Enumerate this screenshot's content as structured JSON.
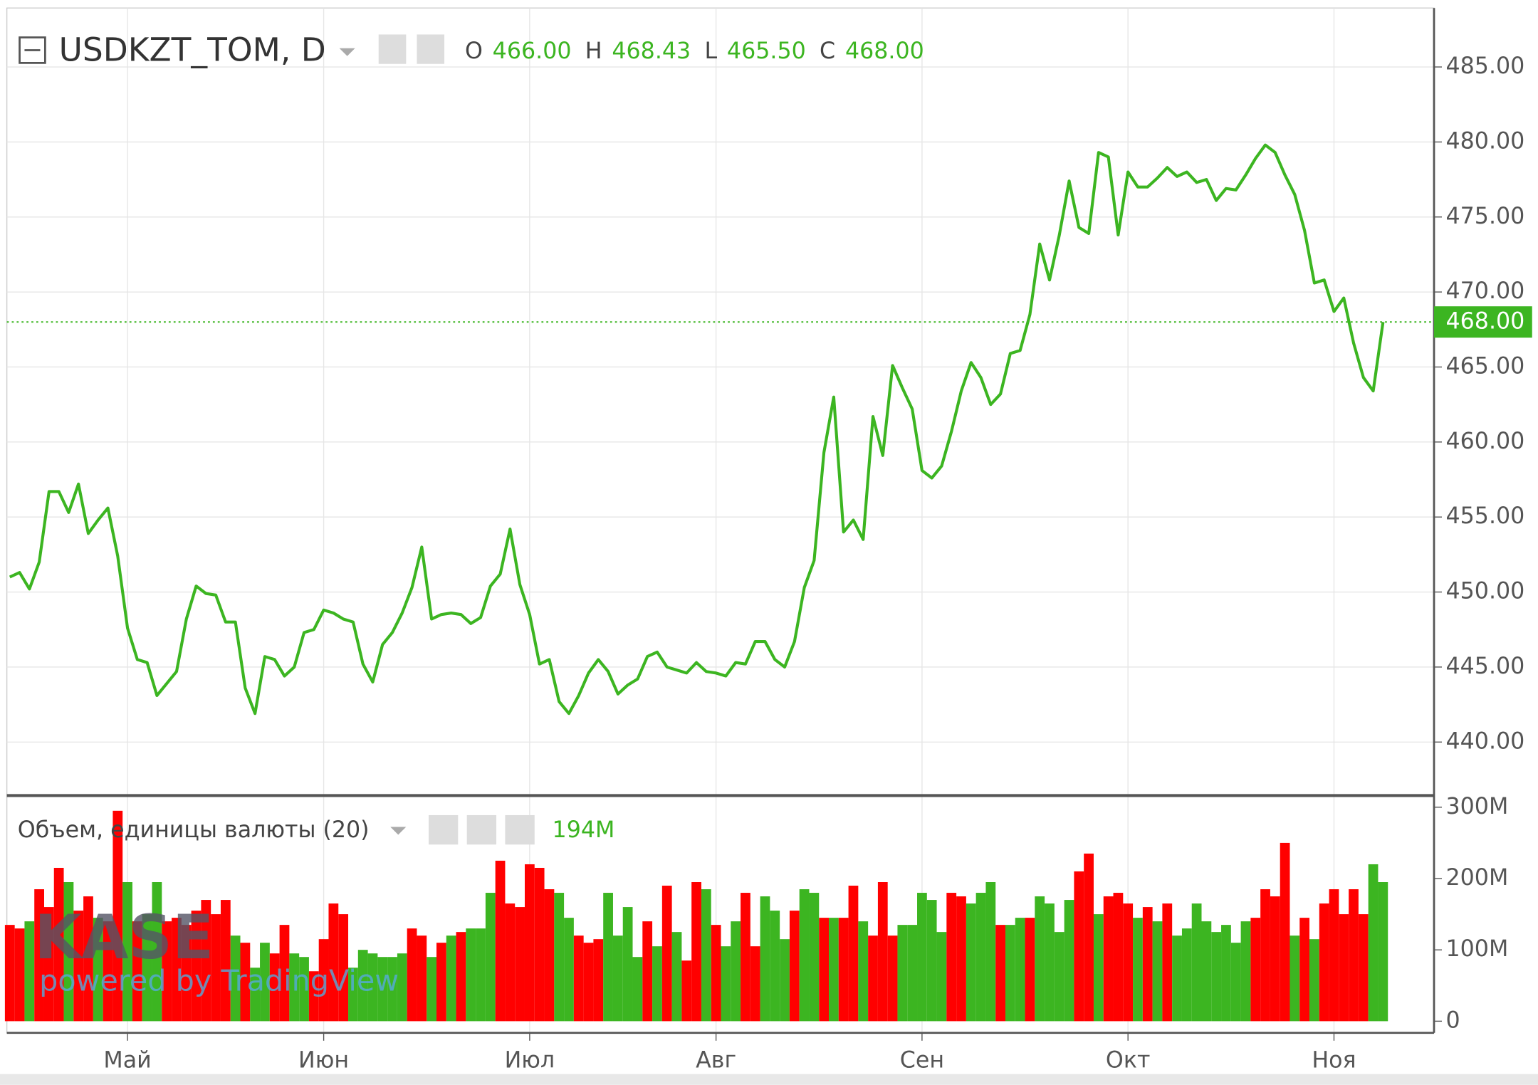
{
  "chart_data": [
    {
      "type": "line",
      "title": "USDKZT_TOM, D",
      "ohlc": [
        {
          "key": "O",
          "value": "466.00"
        },
        {
          "key": "H",
          "value": "468.43"
        },
        {
          "key": "L",
          "value": "465.50"
        },
        {
          "key": "C",
          "value": "468.00"
        }
      ],
      "last_value_label": "468.00",
      "categories": [
        null,
        null,
        null,
        null,
        null,
        null,
        null,
        null,
        null,
        null,
        null,
        null,
        "Май",
        null,
        null,
        null,
        null,
        null,
        null,
        null,
        null,
        null,
        null,
        null,
        null,
        null,
        null,
        null,
        null,
        null,
        null,
        null,
        "Июн",
        null,
        null,
        null,
        null,
        null,
        null,
        null,
        null,
        null,
        null,
        null,
        null,
        null,
        null,
        null,
        null,
        null,
        null,
        null,
        null,
        "Июл",
        null,
        null,
        null,
        null,
        null,
        null,
        null,
        null,
        null,
        null,
        null,
        null,
        null,
        null,
        null,
        null,
        null,
        null,
        "Авг",
        null,
        null,
        null,
        null,
        null,
        null,
        null,
        null,
        null,
        null,
        null,
        null,
        null,
        null,
        null,
        null,
        null,
        null,
        null,
        null,
        "Сен",
        null,
        null,
        null,
        null,
        null,
        null,
        null,
        null,
        null,
        null,
        null,
        null,
        null,
        null,
        null,
        null,
        null,
        null,
        null,
        null,
        "Окт",
        null,
        null,
        null,
        null,
        null,
        null,
        null,
        null,
        null,
        null,
        null,
        null,
        null,
        null,
        null,
        null,
        null,
        null,
        null,
        null,
        "Ноя",
        null,
        null,
        null,
        null,
        null
      ],
      "series": [
        {
          "color": "#3cb521",
          "values": [
            451.0,
            451.3,
            450.2,
            452.0,
            456.7,
            456.7,
            455.3,
            457.2,
            453.9,
            454.8,
            455.6,
            452.4,
            447.6,
            445.5,
            445.3,
            443.1,
            443.9,
            444.7,
            448.2,
            450.4,
            449.9,
            449.8,
            448.0,
            448.0,
            443.6,
            441.9,
            445.7,
            445.5,
            444.4,
            445.0,
            447.3,
            447.5,
            448.8,
            448.6,
            448.2,
            448.0,
            445.2,
            444.0,
            446.5,
            447.3,
            448.6,
            450.3,
            453.0,
            448.2,
            448.5,
            448.6,
            448.5,
            447.9,
            448.3,
            450.4,
            451.2,
            454.2,
            450.5,
            448.5,
            445.2,
            445.5,
            442.7,
            441.9,
            443.1,
            444.6,
            445.5,
            444.7,
            443.2,
            443.8,
            444.2,
            445.7,
            446.0,
            445.0,
            444.8,
            444.6,
            445.3,
            444.7,
            444.6,
            444.4,
            445.3,
            445.2,
            446.7,
            446.7,
            445.5,
            445.0,
            446.7,
            450.3,
            452.1,
            459.3,
            463.0,
            454.0,
            454.8,
            453.5,
            461.7,
            459.1,
            465.1,
            463.6,
            462.2,
            458.1,
            457.6,
            458.4,
            460.7,
            463.4,
            465.3,
            464.3,
            462.5,
            463.2,
            465.9,
            466.1,
            468.5,
            473.2,
            470.8,
            473.8,
            477.4,
            474.3,
            473.9,
            479.3,
            479.0,
            473.8,
            478.0,
            477.0,
            477.0,
            477.6,
            478.3,
            477.7,
            478.0,
            477.3,
            477.5,
            476.1,
            476.9,
            476.8,
            477.8,
            478.9,
            479.8,
            479.3,
            477.8,
            476.5,
            474.1,
            470.6,
            470.8,
            468.7,
            469.6,
            466.6,
            464.3,
            463.4,
            468.0
          ]
        }
      ],
      "ylim": [
        436.5,
        488.8
      ],
      "yticks": [
        {
          "value": 440,
          "label": "440.00"
        },
        {
          "value": 445,
          "label": "445.00"
        },
        {
          "value": 450,
          "label": "450.00"
        },
        {
          "value": 455,
          "label": "455.00"
        },
        {
          "value": 460,
          "label": "460.00"
        },
        {
          "value": 465,
          "label": "465.00"
        },
        {
          "value": 470,
          "label": "470.00"
        },
        {
          "value": 475,
          "label": "475.00"
        },
        {
          "value": 480,
          "label": "480.00"
        },
        {
          "value": 485,
          "label": "485.00"
        }
      ],
      "grid": true,
      "watermark": "KASE",
      "watermark_sub": "powered by TradingView"
    },
    {
      "type": "bar",
      "title": "Объем, единицы валюты (20)",
      "last_value_label": "194M",
      "values": [
        135,
        130,
        140,
        185,
        160,
        215,
        195,
        155,
        175,
        145,
        140,
        295,
        195,
        140,
        150,
        195,
        140,
        145,
        135,
        155,
        170,
        150,
        170,
        120,
        110,
        75,
        110,
        95,
        135,
        95,
        90,
        70,
        115,
        165,
        150,
        75,
        100,
        95,
        90,
        90,
        95,
        130,
        120,
        90,
        110,
        120,
        125,
        130,
        130,
        180,
        225,
        165,
        160,
        220,
        215,
        185,
        180,
        145,
        120,
        110,
        115,
        180,
        120,
        160,
        90,
        140,
        105,
        190,
        125,
        85,
        195,
        185,
        135,
        105,
        140,
        180,
        105,
        175,
        155,
        115,
        155,
        185,
        180,
        145,
        145,
        145,
        190,
        140,
        120,
        195,
        120,
        135,
        135,
        180,
        170,
        125,
        180,
        175,
        165,
        180,
        195,
        135,
        135,
        145,
        145,
        175,
        165,
        125,
        170,
        210,
        235,
        150,
        175,
        180,
        165,
        145,
        160,
        140,
        165,
        120,
        130,
        165,
        140,
        125,
        135,
        110,
        140,
        145,
        185,
        175,
        250,
        120,
        145,
        115,
        165,
        185,
        150,
        185,
        150,
        220,
        195
      ],
      "bar_colors": [
        "#f00",
        "#f00",
        "#3cb521",
        "#f00",
        "#f00",
        "#f00",
        "#3cb521",
        "#f00",
        "#f00",
        "#3cb521",
        "#f00",
        "#f00",
        "#3cb521",
        "#f00",
        "#3cb521",
        "#3cb521",
        "#f00",
        "#f00",
        "#f00",
        "#f00",
        "#f00",
        "#f00",
        "#f00",
        "#3cb521",
        "#f00",
        "#3cb521",
        "#3cb521",
        "#f00",
        "#f00",
        "#3cb521",
        "#3cb521",
        "#f00",
        "#f00",
        "#f00",
        "#f00",
        "#3cb521",
        "#3cb521",
        "#3cb521",
        "#3cb521",
        "#3cb521",
        "#3cb521",
        "#f00",
        "#f00",
        "#3cb521",
        "#f00",
        "#3cb521",
        "#f00",
        "#3cb521",
        "#3cb521",
        "#3cb521",
        "#f00",
        "#f00",
        "#f00",
        "#f00",
        "#f00",
        "#f00",
        "#3cb521",
        "#3cb521",
        "#f00",
        "#f00",
        "#f00",
        "#3cb521",
        "#3cb521",
        "#3cb521",
        "#3cb521",
        "#f00",
        "#3cb521",
        "#f00",
        "#3cb521",
        "#f00",
        "#f00",
        "#3cb521",
        "#f00",
        "#3cb521",
        "#3cb521",
        "#f00",
        "#f00",
        "#3cb521",
        "#3cb521",
        "#3cb521",
        "#f00",
        "#3cb521",
        "#3cb521",
        "#f00",
        "#3cb521",
        "#f00",
        "#f00",
        "#3cb521",
        "#f00",
        "#f00",
        "#f00",
        "#3cb521",
        "#3cb521",
        "#3cb521",
        "#3cb521",
        "#3cb521",
        "#f00",
        "#f00",
        "#3cb521",
        "#3cb521",
        "#3cb521",
        "#f00",
        "#3cb521",
        "#3cb521",
        "#f00",
        "#3cb521",
        "#3cb521",
        "#3cb521",
        "#3cb521",
        "#f00",
        "#f00",
        "#3cb521",
        "#f00",
        "#f00",
        "#f00",
        "#3cb521",
        "#f00",
        "#3cb521",
        "#f00",
        "#3cb521",
        "#3cb521",
        "#3cb521",
        "#3cb521",
        "#3cb521",
        "#3cb521",
        "#3cb521",
        "#3cb521",
        "#f00",
        "#f00",
        "#f00",
        "#f00",
        "#3cb521",
        "#f00",
        "#3cb521",
        "#f00",
        "#f00",
        "#f00",
        "#f00",
        "#f00",
        "#3cb521",
        "#3cb521"
      ],
      "ylim": [
        -15,
        315
      ],
      "yticks": [
        0,
        {
          "value": 100,
          "label": "100M"
        },
        {
          "value": 200,
          "label": "200M"
        },
        {
          "value": 300,
          "label": "300M"
        }
      ]
    }
  ]
}
